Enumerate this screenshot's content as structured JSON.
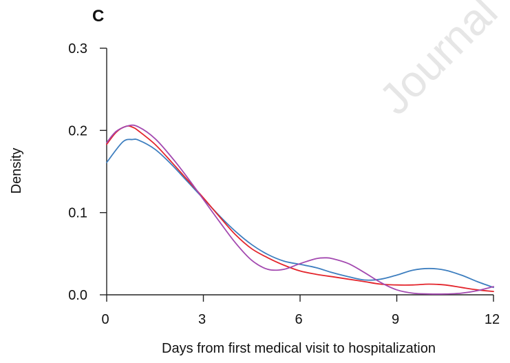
{
  "panel_label": "C",
  "watermark": "Journal",
  "chart_data": {
    "type": "line",
    "title": "",
    "xlabel": "Days from first medical visit to hospitalization",
    "ylabel": "Density",
    "xlim": [
      0,
      12
    ],
    "ylim": [
      0,
      0.3
    ],
    "x_ticks": [
      0,
      3,
      6,
      9,
      12
    ],
    "x_tick_labels": [
      "0",
      "3",
      "6",
      "9",
      "12"
    ],
    "y_ticks": [
      0.0,
      0.1,
      0.2,
      0.3
    ],
    "y_tick_labels": [
      "0.0",
      "0.1",
      "0.2",
      "0.3"
    ],
    "grid": false,
    "legend": "none",
    "series": [
      {
        "color": "#3d7ebf",
        "x": [
          0,
          0.5,
          0.8,
          1.0,
          1.5,
          2,
          2.5,
          3,
          3.5,
          4,
          4.5,
          5,
          5.5,
          6,
          6.5,
          7,
          7.5,
          8,
          8.5,
          9,
          9.5,
          10,
          10.5,
          11,
          11.5,
          12
        ],
        "y": [
          0.161,
          0.186,
          0.189,
          0.188,
          0.177,
          0.159,
          0.138,
          0.117,
          0.096,
          0.077,
          0.061,
          0.049,
          0.041,
          0.037,
          0.033,
          0.027,
          0.022,
          0.018,
          0.019,
          0.024,
          0.03,
          0.032,
          0.03,
          0.024,
          0.016,
          0.009
        ]
      },
      {
        "color": "#e3242b",
        "x": [
          0,
          0.3,
          0.6,
          0.8,
          1.0,
          1.5,
          2,
          2.5,
          3,
          3.5,
          4,
          4.5,
          5,
          5.5,
          6,
          6.5,
          7,
          7.5,
          8,
          8.5,
          9,
          9.5,
          10,
          10.5,
          11,
          11.5,
          12
        ],
        "y": [
          0.183,
          0.198,
          0.205,
          0.204,
          0.199,
          0.183,
          0.162,
          0.14,
          0.118,
          0.095,
          0.073,
          0.056,
          0.045,
          0.036,
          0.029,
          0.025,
          0.022,
          0.019,
          0.016,
          0.013,
          0.012,
          0.012,
          0.013,
          0.012,
          0.009,
          0.006,
          0.004
        ]
      },
      {
        "color": "#a349b0",
        "x": [
          0,
          0.3,
          0.7,
          1.0,
          1.5,
          2,
          2.5,
          3,
          3.5,
          4,
          4.5,
          5,
          5.5,
          6,
          6.5,
          6.8,
          7,
          7.5,
          8,
          8.5,
          9,
          9.5,
          10,
          10.5,
          11,
          11.5,
          12
        ],
        "y": [
          0.185,
          0.199,
          0.206,
          0.204,
          0.19,
          0.168,
          0.143,
          0.116,
          0.089,
          0.063,
          0.042,
          0.031,
          0.031,
          0.038,
          0.044,
          0.045,
          0.044,
          0.038,
          0.027,
          0.015,
          0.006,
          0.002,
          0.001,
          0.001,
          0.002,
          0.005,
          0.01
        ]
      }
    ]
  }
}
